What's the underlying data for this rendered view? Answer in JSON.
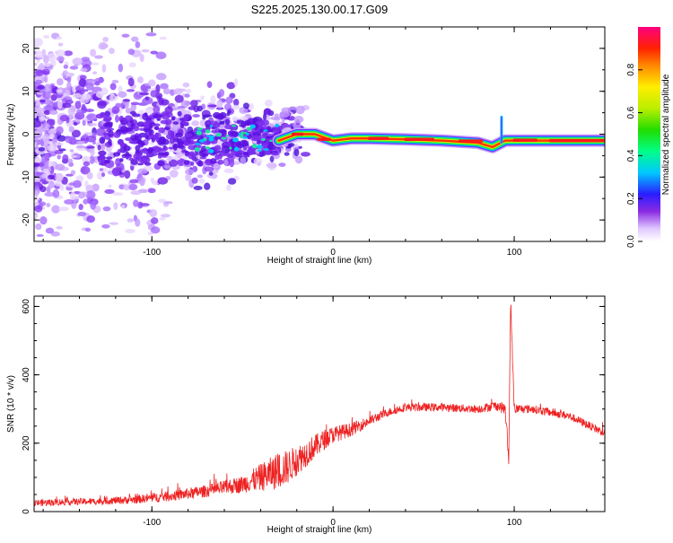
{
  "title": "S225.2025.130.00.17.G09",
  "colors": {
    "snr_line": "#ee2222",
    "axis": "#000000",
    "spectrum_low": "#cc99ff",
    "spectrum_mid": "#2222ff",
    "spectrum_high": "#ff2222"
  },
  "chart_data": [
    {
      "type": "heatmap",
      "name": "spectrogram",
      "title": "",
      "xlabel": "Height of straight line (km)",
      "ylabel": "Frequency (Hz)",
      "xlim": [
        -165,
        150
      ],
      "ylim": [
        -25,
        25
      ],
      "x_ticks": [
        -100,
        0,
        100
      ],
      "y_ticks": [
        -20,
        -10,
        0,
        10,
        20
      ],
      "grid": false,
      "colorbar": {
        "label": "Normalized spectral amplitude",
        "range": [
          0,
          1
        ],
        "ticks": [
          0.0,
          0.2,
          0.4,
          0.6,
          0.8
        ]
      },
      "ridge_frequency": [
        {
          "x": -30,
          "y": -1.5
        },
        {
          "x": -20,
          "y": 0
        },
        {
          "x": -10,
          "y": 0
        },
        {
          "x": 0,
          "y": -1.5
        },
        {
          "x": 10,
          "y": -1
        },
        {
          "x": 20,
          "y": -1
        },
        {
          "x": 40,
          "y": -1.2
        },
        {
          "x": 60,
          "y": -1.5
        },
        {
          "x": 80,
          "y": -2
        },
        {
          "x": 88,
          "y": -3
        },
        {
          "x": 95,
          "y": -1.5
        },
        {
          "x": 105,
          "y": -1.5
        },
        {
          "x": 150,
          "y": -1.5
        }
      ],
      "spike": {
        "x": 93,
        "y_range": [
          -2,
          4
        ]
      }
    },
    {
      "type": "line",
      "name": "snr",
      "title": "",
      "xlabel": "Height of straight line (km)",
      "ylabel": "SNR (10 * v/v)",
      "xlim": [
        -165,
        150
      ],
      "ylim": [
        0,
        630
      ],
      "x_ticks": [
        -100,
        0,
        100
      ],
      "y_ticks": [
        0,
        200,
        400,
        600
      ],
      "grid": false,
      "series": [
        {
          "x": [
            -165,
            -150,
            -130,
            -110,
            -90,
            -70,
            -50,
            -40,
            -30,
            -25,
            -20,
            -15,
            -10,
            -5,
            0,
            10,
            20,
            30,
            40,
            60,
            80,
            90,
            95,
            97,
            98,
            100,
            110,
            130,
            150
          ],
          "y": [
            25,
            28,
            30,
            35,
            45,
            60,
            80,
            100,
            120,
            130,
            150,
            170,
            190,
            210,
            225,
            240,
            265,
            290,
            305,
            305,
            300,
            310,
            300,
            150,
            620,
            300,
            300,
            280,
            230
          ],
          "noise_amplitude": [
            10,
            10,
            10,
            12,
            15,
            18,
            25,
            40,
            55,
            50,
            45,
            40,
            35,
            30,
            25,
            20,
            15,
            12,
            12,
            12,
            12,
            14,
            18,
            20,
            20,
            14,
            12,
            12,
            12
          ]
        }
      ]
    }
  ]
}
